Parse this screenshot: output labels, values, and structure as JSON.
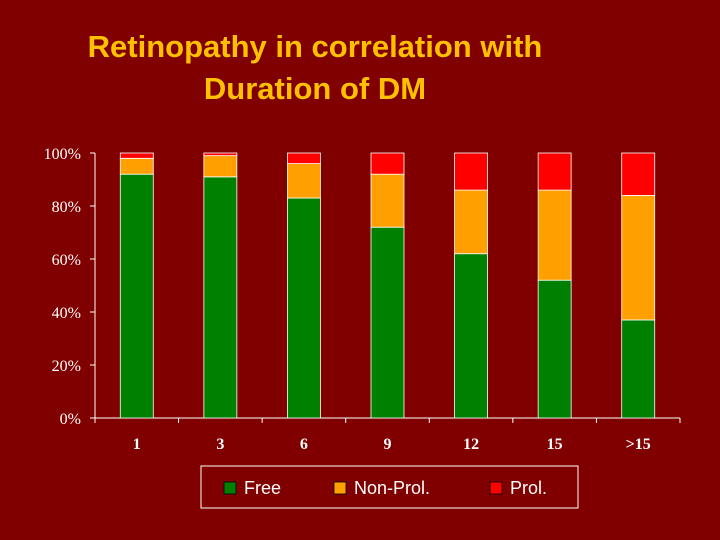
{
  "slide": {
    "title_line1": "Retinopathy in correlation with",
    "title_line2": "Duration of DM"
  },
  "colors": {
    "background": "#800000",
    "title": "#ffc000",
    "Free": "#008000",
    "Non-Prol.": "#ffa000",
    "Prol.": "#ff0000",
    "axis": "#ffffff"
  },
  "chart_data": {
    "type": "bar",
    "stacked": true,
    "categories": [
      "1",
      "3",
      "6",
      "9",
      "12",
      "15",
      ">15"
    ],
    "series": [
      {
        "name": "Free",
        "values": [
          92,
          91,
          83,
          72,
          62,
          52,
          37
        ]
      },
      {
        "name": "Non-Prol.",
        "values": [
          6,
          8,
          13,
          20,
          24,
          34,
          47
        ]
      },
      {
        "name": "Prol.",
        "values": [
          2,
          1,
          4,
          8,
          14,
          14,
          16
        ]
      }
    ],
    "y_ticks": [
      "0%",
      "20%",
      "40%",
      "60%",
      "80%",
      "100%"
    ],
    "ylim": [
      0,
      100
    ],
    "legend_position": "bottom",
    "grid": false
  }
}
